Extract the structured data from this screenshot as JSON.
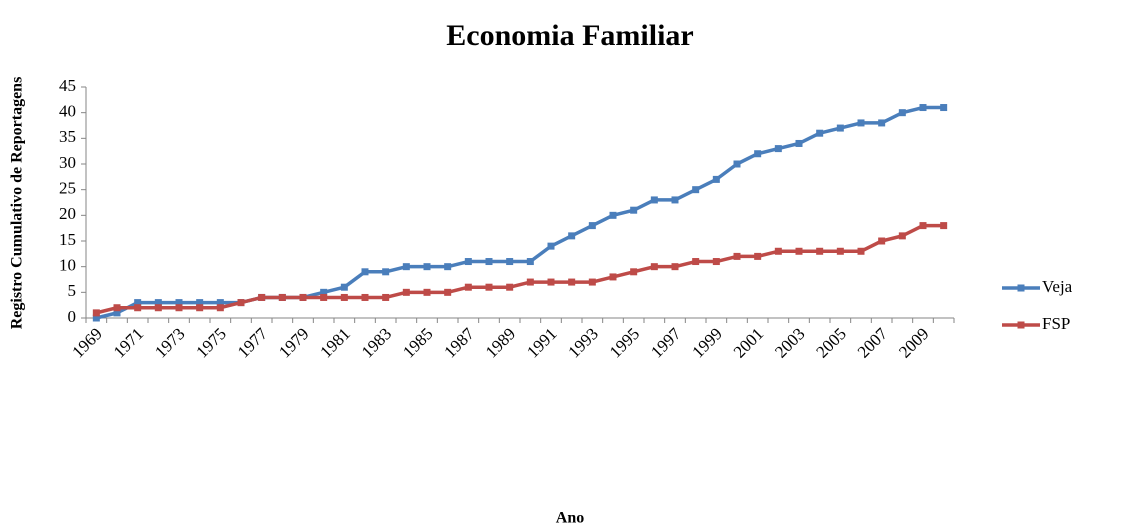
{
  "chart_data": {
    "type": "line",
    "title": "Economia Familiar",
    "xlabel": "Ano",
    "ylabel": "Registro Cumulativo de Reportagens",
    "categories": [
      "1969",
      null,
      "1971",
      null,
      "1973",
      null,
      "1975",
      null,
      "1977",
      null,
      "1979",
      null,
      "1981",
      null,
      "1983",
      null,
      "1985",
      null,
      "1987",
      null,
      "1989",
      null,
      "1991",
      null,
      "1993",
      null,
      "1995",
      null,
      "1997",
      null,
      "1999",
      null,
      "2001",
      null,
      "2003",
      null,
      "2005",
      null,
      "2007",
      null,
      "2009",
      null
    ],
    "series": [
      {
        "name": "Veja",
        "color": "#4a7ebb",
        "values": [
          0,
          1,
          3,
          3,
          3,
          3,
          3,
          3,
          4,
          4,
          4,
          5,
          6,
          9,
          9,
          10,
          10,
          10,
          11,
          11,
          11,
          11,
          14,
          16,
          18,
          20,
          21,
          23,
          23,
          25,
          27,
          30,
          32,
          33,
          34,
          36,
          37,
          38,
          38,
          40,
          41,
          41
        ]
      },
      {
        "name": "FSP",
        "color": "#be4b48",
        "values": [
          1,
          2,
          2,
          2,
          2,
          2,
          2,
          3,
          4,
          4,
          4,
          4,
          4,
          4,
          4,
          5,
          5,
          5,
          6,
          6,
          6,
          7,
          7,
          7,
          7,
          8,
          9,
          10,
          10,
          11,
          11,
          12,
          12,
          13,
          13,
          13,
          13,
          13,
          15,
          16,
          18,
          18
        ]
      }
    ],
    "ylim": [
      0,
      45
    ],
    "yticks": [
      0,
      5,
      10,
      15,
      20,
      25,
      30,
      35,
      40,
      45
    ],
    "grid": false,
    "legend": "right"
  }
}
